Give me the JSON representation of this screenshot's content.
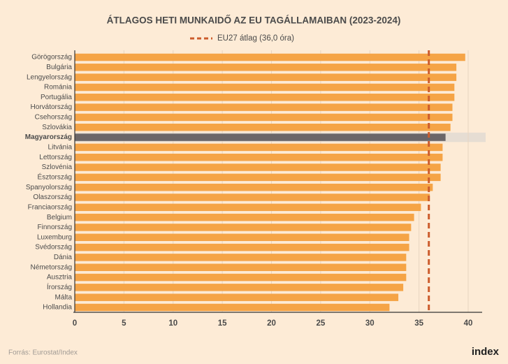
{
  "chart_data": {
    "type": "bar",
    "orientation": "horizontal",
    "title": "ÁTLAGOS HETI MUNKAIDŐ AZ EU TAGÁLLAMAIBAN (2023-2024)",
    "categories": [
      "Görögország",
      "Bulgária",
      "Lengyelország",
      "Románia",
      "Portugália",
      "Horvátország",
      "Csehország",
      "Szlovákia",
      "Magyarország",
      "Litvánia",
      "Lettország",
      "Szlovénia",
      "Észtország",
      "Spanyolország",
      "Olaszország",
      "Franciaország",
      "Belgium",
      "Finnország",
      "Luxemburg",
      "Svédország",
      "Dánia",
      "Németország",
      "Ausztria",
      "Írország",
      "Málta",
      "Hollandia"
    ],
    "values": [
      39.7,
      38.8,
      38.8,
      38.6,
      38.6,
      38.4,
      38.4,
      38.2,
      37.7,
      37.4,
      37.4,
      37.2,
      37.2,
      36.4,
      36.1,
      35.2,
      34.5,
      34.2,
      34.0,
      34.0,
      33.7,
      33.7,
      33.7,
      33.4,
      32.9,
      32.0
    ],
    "color": "#f5a446",
    "highlight": {
      "category": "Magyarország",
      "color": "#6b6668",
      "band_color": "#e6ddd3"
    },
    "xlim": [
      0,
      40
    ],
    "xticks": [
      0,
      5,
      10,
      15,
      20,
      25,
      30,
      35,
      40
    ],
    "grid": true,
    "reference_line": {
      "value": 36.0,
      "label": "EU27 átlag (36,0 óra)",
      "color": "#cc5c2c"
    },
    "source": "Forrás: Eurostat/Index",
    "logo": "index"
  }
}
